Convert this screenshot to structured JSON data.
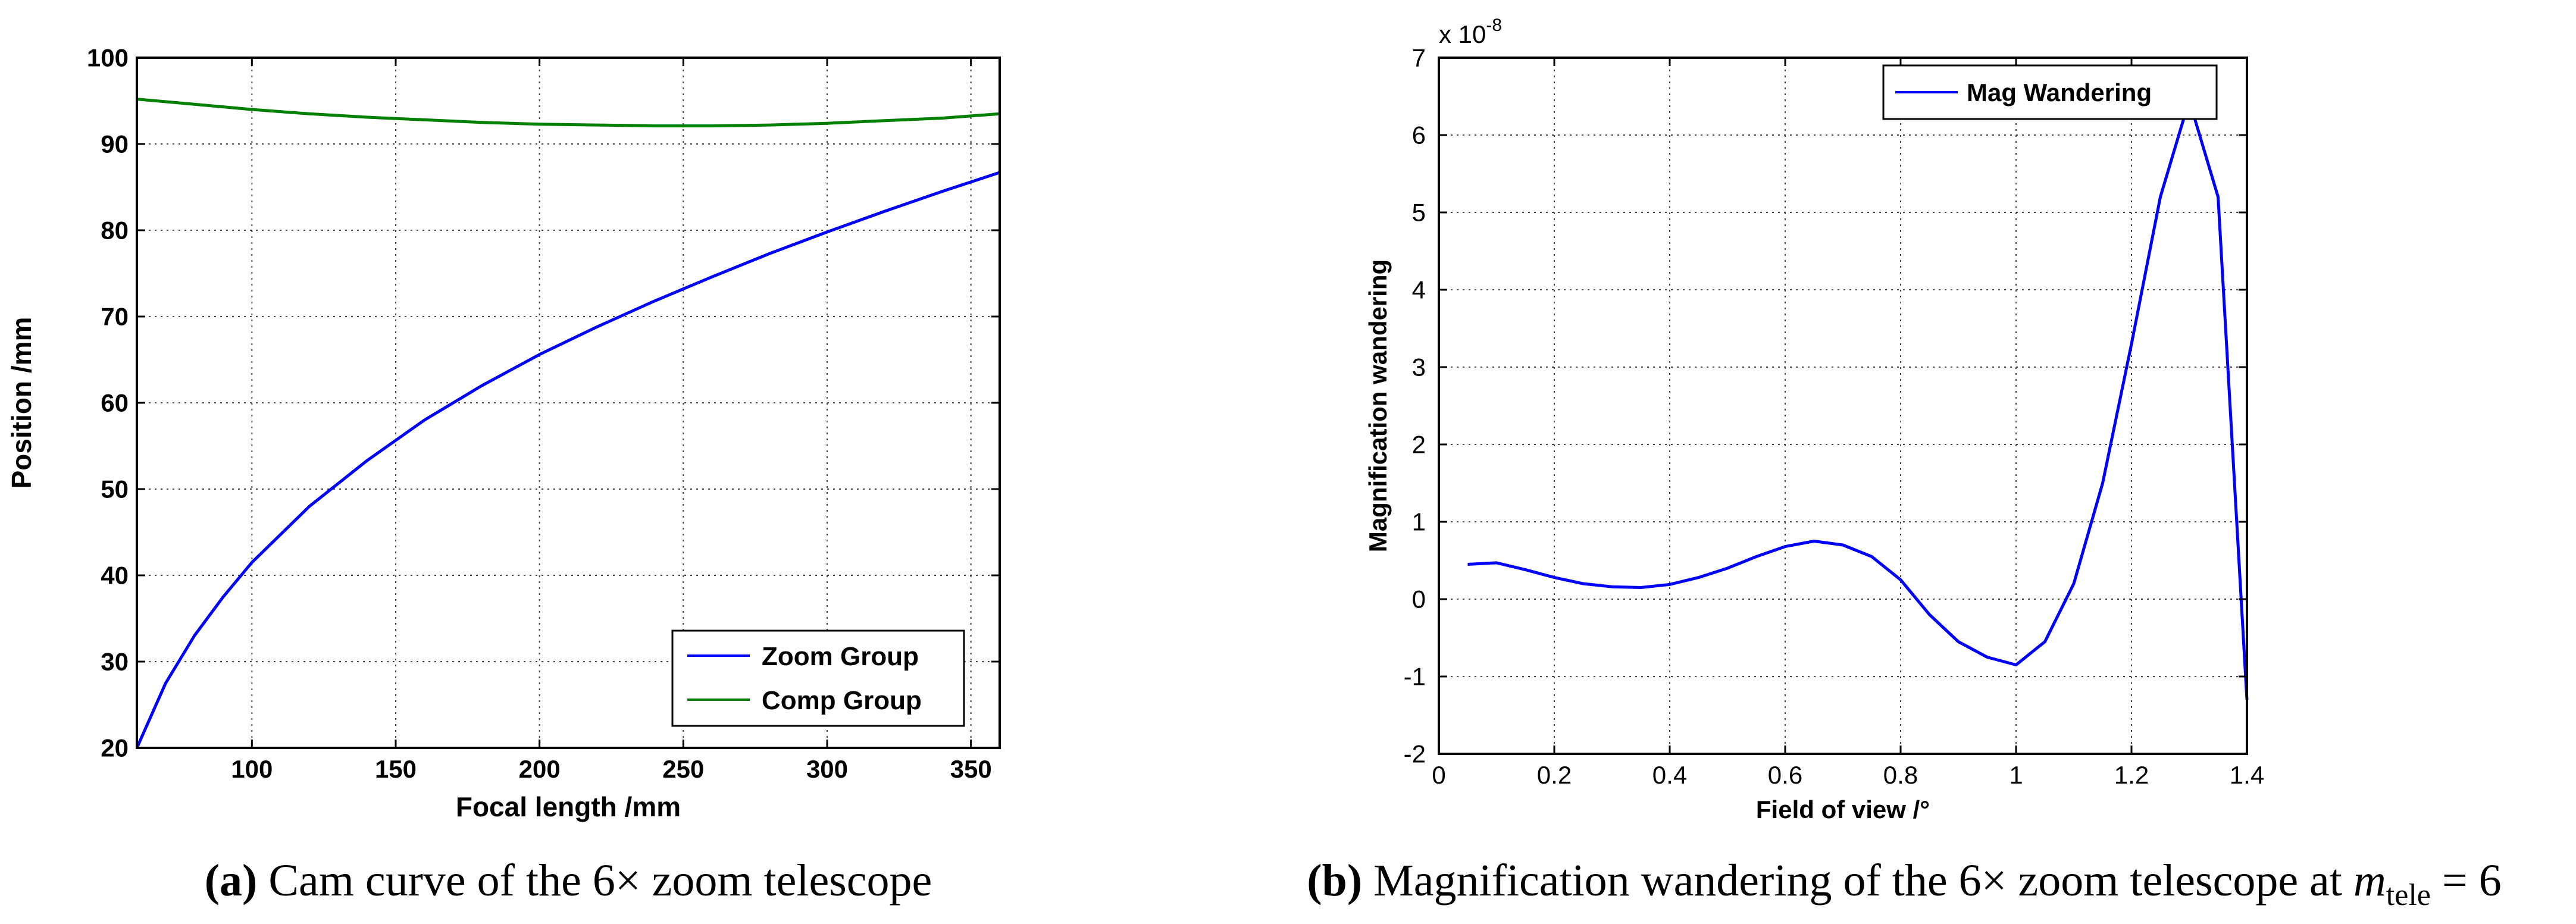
{
  "chart_data": [
    {
      "type": "line",
      "xlabel": "Focal length /mm",
      "ylabel": "Position /mm",
      "xlim": [
        60,
        360
      ],
      "ylim": [
        20,
        100
      ],
      "xticks": [
        100,
        150,
        200,
        250,
        300,
        350
      ],
      "yticks": [
        20,
        30,
        40,
        50,
        60,
        70,
        80,
        90,
        100
      ],
      "grid": true,
      "legend_position": "bottom-right",
      "series": [
        {
          "name": "Zoom Group",
          "color": "#0000ff",
          "x": [
            60,
            70,
            80,
            90,
            100,
            120,
            140,
            160,
            180,
            200,
            220,
            240,
            260,
            280,
            300,
            320,
            340,
            360
          ],
          "y": [
            20.0,
            27.5,
            33.0,
            37.5,
            41.5,
            48.0,
            53.3,
            58.0,
            62.0,
            65.6,
            68.8,
            71.8,
            74.6,
            77.3,
            79.8,
            82.2,
            84.5,
            86.7
          ]
        },
        {
          "name": "Comp Group",
          "color": "#007f00",
          "x": [
            60,
            80,
            100,
            120,
            140,
            160,
            180,
            200,
            220,
            240,
            260,
            280,
            300,
            320,
            340,
            360
          ],
          "y": [
            95.2,
            94.6,
            94.0,
            93.5,
            93.1,
            92.8,
            92.5,
            92.3,
            92.2,
            92.1,
            92.1,
            92.2,
            92.4,
            92.7,
            93.0,
            93.5
          ]
        }
      ],
      "caption_label": "(a)",
      "caption_text": " Cam curve of the 6× zoom telescope"
    },
    {
      "type": "line",
      "xlabel": "Field of view /°",
      "ylabel": "Magnification wandering",
      "xlim": [
        0,
        1.4
      ],
      "ylim": [
        -2,
        7
      ],
      "xticks": [
        0,
        0.2,
        0.4,
        0.6,
        0.8,
        1,
        1.2,
        1.4
      ],
      "xtick_labels": [
        "0",
        "0.2",
        "0.4",
        "0.6",
        "0.8",
        "1",
        "1.2",
        "1.4"
      ],
      "yticks": [
        -2,
        -1,
        0,
        1,
        2,
        3,
        4,
        5,
        6,
        7
      ],
      "yaxis_multiplier_base": "x 10",
      "yaxis_multiplier_exp": "-8",
      "grid": true,
      "legend_position": "top-right",
      "series": [
        {
          "name": "Mag Wandering",
          "color": "#0000ff",
          "x": [
            0.05,
            0.1,
            0.15,
            0.2,
            0.25,
            0.3,
            0.35,
            0.4,
            0.45,
            0.5,
            0.55,
            0.6,
            0.65,
            0.7,
            0.75,
            0.8,
            0.85,
            0.9,
            0.95,
            1.0,
            1.05,
            1.1,
            1.15,
            1.2,
            1.25,
            1.3,
            1.35,
            1.4
          ],
          "y": [
            0.45,
            0.47,
            0.38,
            0.28,
            0.2,
            0.16,
            0.15,
            0.19,
            0.28,
            0.4,
            0.55,
            0.68,
            0.75,
            0.7,
            0.55,
            0.25,
            -0.2,
            -0.55,
            -0.75,
            -0.85,
            -0.55,
            0.2,
            1.5,
            3.3,
            5.2,
            6.45,
            5.2,
            -1.3
          ]
        }
      ],
      "caption_label": "(b)",
      "caption_text": " Magnification wandering of the 6× zoom telescope at ",
      "caption_math_var": "m",
      "caption_math_sub": "tele",
      "caption_math_rest": " = 6"
    }
  ]
}
